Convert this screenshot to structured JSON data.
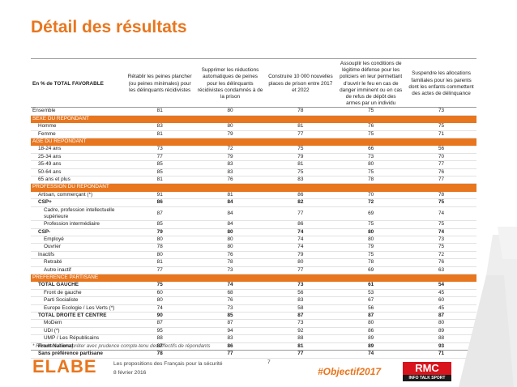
{
  "page": {
    "title": "Détail des résultats",
    "note": "* Résultats à interpréter avec prudence compte-tenu des effectifs de répondants",
    "footer": {
      "logo": "ELABE",
      "line1": "Les propositions des Français pour la sécurité",
      "line2": "8 février 2016",
      "page_number": "7",
      "hashtag": "#Objectif2017",
      "rmc_top": "RMC",
      "rmc_bottom": "INFO TALK SPORT"
    }
  },
  "colors": {
    "accent": "#e8761e",
    "section_bg": "#e8761e",
    "rmc_red": "#d8141c"
  },
  "chart_data": {
    "type": "table",
    "header_label": "En % de TOTAL FAVORABLE",
    "columns": [
      "Rétablir les peines plancher (ou peines minimales) pour les délinquants récidivistes",
      "Supprimer les réductions automatiques de peines pour les délinquants récidivistes condamnés à de la prison",
      "Construire 10 000 nouvelles places de prison entre 2017 et 2022",
      "Assouplir les conditions de légitime défense pour les policiers en leur permettant d'ouvrir le feu en cas de danger imminent ou en cas de refus de dépôt des armes par un individu",
      "Suspendre les allocations familiales pour les parents dont les enfants commettent des actes de délinquance"
    ],
    "rows": [
      {
        "label": "Ensemble",
        "values": [
          "81",
          "80",
          "78",
          "75",
          "73"
        ],
        "style": "top"
      },
      {
        "label": "SEXE DU REPONDANT",
        "section": true
      },
      {
        "label": "Homme",
        "values": [
          "83",
          "80",
          "81",
          "76",
          "75"
        ],
        "style": "ind"
      },
      {
        "label": "Femme",
        "values": [
          "81",
          "79",
          "77",
          "75",
          "71"
        ],
        "style": "ind"
      },
      {
        "label": "AGE DU REPONDANT",
        "section": true
      },
      {
        "label": "18-24 ans",
        "values": [
          "73",
          "72",
          "75",
          "66",
          "56"
        ],
        "style": "ind"
      },
      {
        "label": "25-34 ans",
        "values": [
          "77",
          "79",
          "79",
          "73",
          "70"
        ],
        "style": "ind"
      },
      {
        "label": "35-49 ans",
        "values": [
          "85",
          "83",
          "81",
          "80",
          "77"
        ],
        "style": "ind"
      },
      {
        "label": "50-64 ans",
        "values": [
          "85",
          "83",
          "75",
          "75",
          "76"
        ],
        "style": "ind"
      },
      {
        "label": "65 ans et plus",
        "values": [
          "81",
          "76",
          "83",
          "78",
          "77"
        ],
        "style": "ind"
      },
      {
        "label": "PROFESSION DU REPONDANT",
        "section": true
      },
      {
        "label": "Artisan, commerçant (*)",
        "values": [
          "91",
          "81",
          "86",
          "70",
          "78"
        ],
        "style": "ind"
      },
      {
        "label": "CSP+",
        "values": [
          "86",
          "84",
          "82",
          "72",
          "75"
        ],
        "style": "boldind"
      },
      {
        "label": "Cadre, profession intellectuelle supérieure",
        "values": [
          "87",
          "84",
          "77",
          "69",
          "74"
        ],
        "style": "tall"
      },
      {
        "label": "Profession intermédiaire",
        "values": [
          "85",
          "84",
          "86",
          "75",
          "75"
        ],
        "style": "ind2"
      },
      {
        "label": "CSP-",
        "values": [
          "79",
          "80",
          "74",
          "80",
          "74"
        ],
        "style": "boldind"
      },
      {
        "label": "Employé",
        "values": [
          "80",
          "80",
          "74",
          "80",
          "73"
        ],
        "style": "ind2"
      },
      {
        "label": "Ouvrier",
        "values": [
          "78",
          "80",
          "74",
          "79",
          "75"
        ],
        "style": "ind2"
      },
      {
        "label": "Inactifs",
        "values": [
          "80",
          "76",
          "79",
          "75",
          "72"
        ],
        "style": "ind"
      },
      {
        "label": "Retraité",
        "values": [
          "81",
          "78",
          "80",
          "78",
          "76"
        ],
        "style": "ind2"
      },
      {
        "label": "Autre inactif",
        "values": [
          "77",
          "73",
          "77",
          "69",
          "63"
        ],
        "style": "ind2"
      },
      {
        "label": "PREFERENCE PARTISANE",
        "section": true
      },
      {
        "label": "TOTAL GAUCHE",
        "values": [
          "75",
          "74",
          "73",
          "61",
          "54"
        ],
        "style": "boldind"
      },
      {
        "label": "Front de gauche",
        "values": [
          "60",
          "68",
          "56",
          "53",
          "45"
        ],
        "style": "ind2"
      },
      {
        "label": "Parti Socialiste",
        "values": [
          "80",
          "76",
          "83",
          "67",
          "60"
        ],
        "style": "ind2"
      },
      {
        "label": "Europe Ecologie / Les Verts (*)",
        "values": [
          "74",
          "73",
          "58",
          "56",
          "45"
        ],
        "style": "ind2"
      },
      {
        "label": "TOTAL DROITE ET CENTRE",
        "values": [
          "90",
          "85",
          "87",
          "87",
          "87"
        ],
        "style": "boldind"
      },
      {
        "label": "MoDem",
        "values": [
          "87",
          "87",
          "73",
          "80",
          "80"
        ],
        "style": "ind2"
      },
      {
        "label": "UDI (*)",
        "values": [
          "95",
          "94",
          "92",
          "86",
          "89"
        ],
        "style": "ind2"
      },
      {
        "label": "UMP / Les Républicains",
        "values": [
          "88",
          "83",
          "88",
          "89",
          "88"
        ],
        "style": "ind2"
      },
      {
        "label": "Front National",
        "values": [
          "87",
          "86",
          "81",
          "89",
          "93"
        ],
        "style": "boldind"
      },
      {
        "label": "Sans préférence partisane",
        "values": [
          "78",
          "77",
          "77",
          "74",
          "71"
        ],
        "style": "boldind"
      }
    ]
  }
}
